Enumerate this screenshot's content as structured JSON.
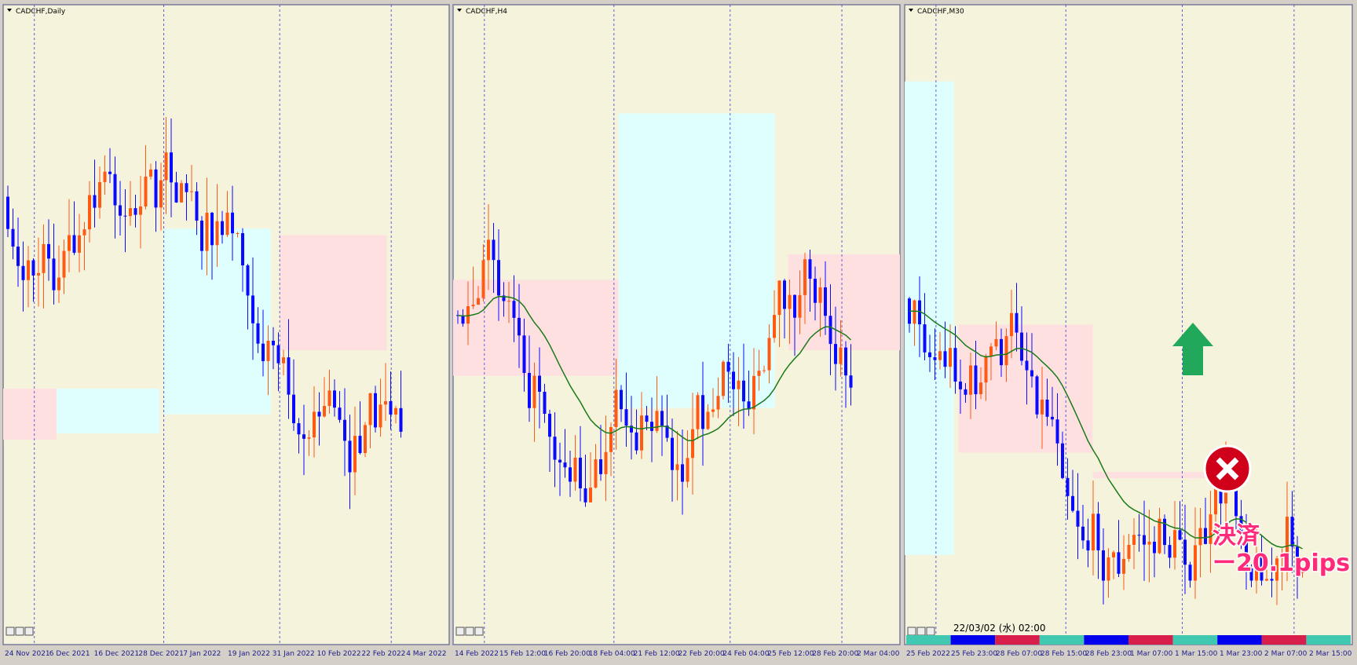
{
  "panels": [
    {
      "title": "CADCHF,Daily",
      "x_labels": [
        "24 Nov 2021",
        "6 Dec 2021",
        "16 Dec 2021",
        "28 Dec 2021",
        "7 Jan 2022",
        "19 Jan 2022",
        "31 Jan 2022",
        "10 Feb 2022",
        "22 Feb 2022",
        "4 Mar 2022"
      ]
    },
    {
      "title": "CADCHF,H4",
      "x_labels": [
        "14 Feb 2022",
        "15 Feb 12:00",
        "16 Feb 20:00",
        "18 Feb 04:00",
        "21 Feb 12:00",
        "22 Feb 20:00",
        "24 Feb 04:00",
        "25 Feb 12:00",
        "28 Feb 20:00",
        "2 Mar 04:00"
      ]
    },
    {
      "title": "CADCHF,M30",
      "x_labels": [
        "25 Feb 2022",
        "25 Feb 23:00",
        "28 Feb 07:00",
        "28 Feb 15:00",
        "28 Feb 23:00",
        "1 Mar 07:00",
        "1 Mar 15:00",
        "1 Mar 23:00",
        "2 Mar 07:00",
        "2 Mar 15:00"
      ]
    }
  ],
  "annotations": {
    "timestamp": "22/03/02 (水) 02:00",
    "settlement": "決済",
    "result": "ー20.1pips"
  }
}
